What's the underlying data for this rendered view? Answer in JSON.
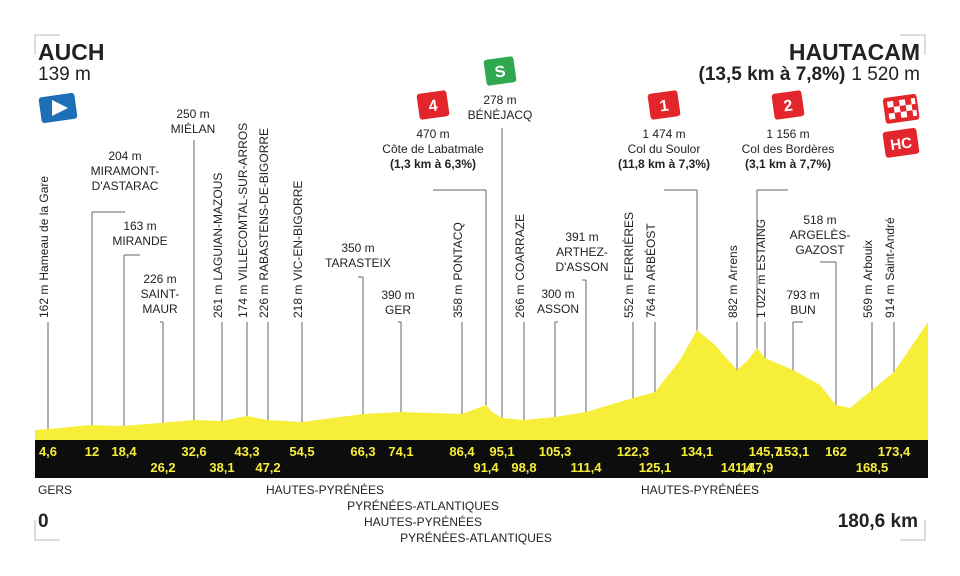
{
  "header": {
    "start": "AUCH",
    "start_altitude": "139 m",
    "finish": "HAUTACAM",
    "finish_climb": "(13,5 km à 7,8%)",
    "finish_altitude": "1 520 m",
    "finish_badge": "HC"
  },
  "waypoints": [
    {
      "km": "4,6",
      "altitude": "162 m",
      "name": [
        "Hameau de la Gare"
      ]
    },
    {
      "km": "12",
      "altitude": "204 m",
      "name": [
        "MIRAMONT-",
        "D'ASTARAC"
      ]
    },
    {
      "km": "18,4",
      "altitude": "163 m",
      "name": [
        "MIRANDE"
      ]
    },
    {
      "km": "26,2",
      "altitude": "226 m",
      "name": [
        "SAINT-",
        "MAUR"
      ]
    },
    {
      "km": "32,6",
      "altitude": "250 m",
      "name": [
        "MIÉLAN"
      ]
    },
    {
      "km": "38,1",
      "altitude": "261 m",
      "name": [
        "LAGUIAN-MAZOUS"
      ]
    },
    {
      "km": "43,3",
      "altitude": "174 m",
      "name": [
        "VILLECOMTAL-SUR-ARROS"
      ]
    },
    {
      "km": "47,2",
      "altitude": "226 m",
      "name": [
        "RABASTENS-DE-BIGORRE"
      ]
    },
    {
      "km": "54,5",
      "altitude": "218 m",
      "name": [
        "VIC-EN-BIGORRE"
      ]
    },
    {
      "km": "66,3",
      "altitude": "350 m",
      "name": [
        "TARASTEIX"
      ]
    },
    {
      "km": "74,1",
      "altitude": "390 m",
      "name": [
        "GER"
      ]
    },
    {
      "km": "86,4",
      "altitude": "358 m",
      "name": [
        "PONTACQ"
      ]
    },
    {
      "km": "91,4",
      "altitude": "470 m",
      "name": [
        "Côte de Labatmale"
      ],
      "climb": "(1,3 km à 6,3%)",
      "badge": "4"
    },
    {
      "km": "95,1",
      "altitude": "278 m",
      "name": [
        "BÉNÉJACQ"
      ],
      "badge": "S"
    },
    {
      "km": "98,8",
      "altitude": "266 m",
      "name": [
        "COARRAZE"
      ]
    },
    {
      "km": "105,3",
      "altitude": "300 m",
      "name": [
        "ASSON"
      ]
    },
    {
      "km": "111,4",
      "altitude": "391 m",
      "name": [
        "ARTHEZ-",
        "D'ASSON"
      ]
    },
    {
      "km": "122,3",
      "altitude": "552 m",
      "name": [
        "FERRIÈRES"
      ]
    },
    {
      "km": "125,1",
      "altitude": "764 m",
      "name": [
        "ARBÉOST"
      ]
    },
    {
      "km": "134,1",
      "altitude": "1 474 m",
      "name": [
        "Col du Soulor"
      ],
      "climb": "(11,8 km à 7,3%)",
      "badge": "1"
    },
    {
      "km": "141,4",
      "altitude": "882 m",
      "name": [
        "Arrens"
      ]
    },
    {
      "km": "145,7",
      "altitude": "1 022 m",
      "name": [
        "ESTAING"
      ]
    },
    {
      "km": "147,9",
      "altitude": "1 156 m",
      "name": [
        "Col des Bordères"
      ],
      "climb": "(3,1 km à 7,7%)",
      "badge": "2"
    },
    {
      "km": "153,1",
      "altitude": "793 m",
      "name": [
        "BUN"
      ]
    },
    {
      "km": "162",
      "altitude": "518 m",
      "name": [
        "ARGELÈS-",
        "GAZOST"
      ]
    },
    {
      "km": "168,5",
      "altitude": "569 m",
      "name": [
        "Arbouix"
      ]
    },
    {
      "km": "173,4",
      "altitude": "914 m",
      "name": [
        "Saint-André"
      ]
    }
  ],
  "regions": [
    "GERS",
    "HAUTES-PYRÉNÉES",
    "PYRÉNÉES-ATLANTIQUES",
    "HAUTES-PYRÉNÉES",
    "PYRÉNÉES-ATLANTIQUES",
    "HAUTES-PYRÉNÉES"
  ],
  "footer": {
    "start_km": "0",
    "total_distance": "180,6 km"
  }
}
